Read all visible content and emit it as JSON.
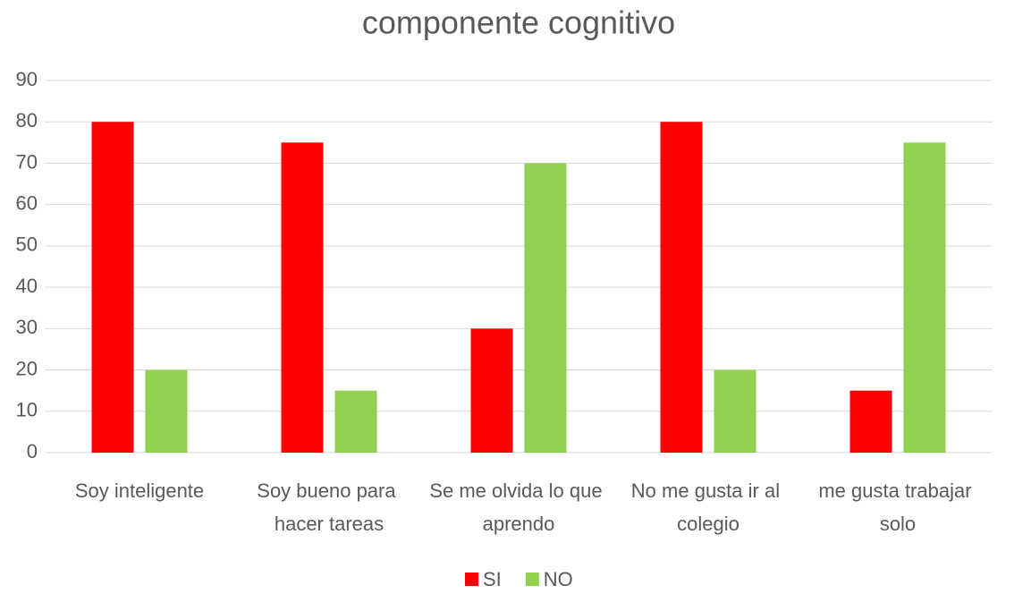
{
  "chart_data": {
    "type": "bar",
    "title": "componente cognitivo",
    "categories": [
      "Soy inteligente",
      "Soy bueno para hacer tareas",
      "Se me olvida lo que aprendo",
      "No me gusta ir al colegio",
      "me gusta trabajar solo"
    ],
    "series": [
      {
        "name": "SI",
        "color": "#ff0000",
        "values": [
          80,
          75,
          30,
          80,
          15
        ]
      },
      {
        "name": "NO",
        "color": "#92d050",
        "values": [
          20,
          15,
          70,
          20,
          75
        ]
      }
    ],
    "ylim": [
      0,
      90
    ],
    "yticks": [
      0,
      10,
      20,
      30,
      40,
      50,
      60,
      70,
      80,
      90
    ],
    "grid": true,
    "legend": "bottom"
  }
}
